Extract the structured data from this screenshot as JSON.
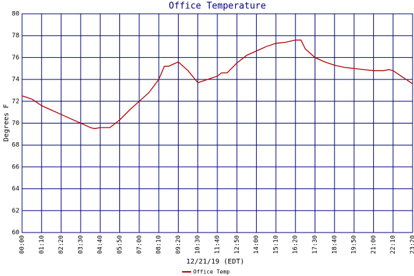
{
  "chart_data": {
    "type": "line",
    "title": "Office Temperature",
    "xlabel": "12/21/19 (EDT)",
    "ylabel": "Degrees F",
    "x": [
      0,
      35,
      70,
      105,
      140,
      175,
      210,
      245,
      260,
      280,
      315,
      350,
      385,
      420,
      455,
      490,
      510,
      525,
      560,
      595,
      630,
      665,
      700,
      715,
      735,
      770,
      805,
      840,
      875,
      910,
      945,
      980,
      1000,
      1015,
      1050,
      1085,
      1120,
      1155,
      1190,
      1225,
      1260,
      1295,
      1315,
      1330,
      1365,
      1400
    ],
    "series": [
      {
        "name": "Office Temp",
        "color": "#b00000",
        "values": [
          72.5,
          72.2,
          71.6,
          71.2,
          70.8,
          70.4,
          70.0,
          69.6,
          69.5,
          69.6,
          69.6,
          70.3,
          71.2,
          72.0,
          72.8,
          74.0,
          75.2,
          75.2,
          75.6,
          74.8,
          73.7,
          74.0,
          74.3,
          74.6,
          74.6,
          75.5,
          76.2,
          76.6,
          77.0,
          77.3,
          77.4,
          77.6,
          77.6,
          76.8,
          76.0,
          75.6,
          75.3,
          75.1,
          75.0,
          74.9,
          74.8,
          74.8,
          74.9,
          74.8,
          74.2,
          73.6
        ]
      }
    ],
    "xlim": [
      0,
      1400
    ],
    "xticks": [
      {
        "value": 0,
        "label": "00:00"
      },
      {
        "value": 70,
        "label": "01:10"
      },
      {
        "value": 140,
        "label": "02:20"
      },
      {
        "value": 210,
        "label": "03:30"
      },
      {
        "value": 280,
        "label": "04:40"
      },
      {
        "value": 350,
        "label": "05:50"
      },
      {
        "value": 420,
        "label": "07:00"
      },
      {
        "value": 490,
        "label": "08:10"
      },
      {
        "value": 560,
        "label": "09:20"
      },
      {
        "value": 630,
        "label": "10:30"
      },
      {
        "value": 700,
        "label": "11:40"
      },
      {
        "value": 770,
        "label": "12:50"
      },
      {
        "value": 840,
        "label": "14:00"
      },
      {
        "value": 910,
        "label": "15:10"
      },
      {
        "value": 980,
        "label": "16:20"
      },
      {
        "value": 1050,
        "label": "17:30"
      },
      {
        "value": 1120,
        "label": "18:40"
      },
      {
        "value": 1190,
        "label": "19:50"
      },
      {
        "value": 1260,
        "label": "21:00"
      },
      {
        "value": 1330,
        "label": "22:10"
      },
      {
        "value": 1400,
        "label": "23:20"
      }
    ],
    "ylim": [
      60,
      80
    ],
    "yticks": [
      60,
      62,
      64,
      66,
      68,
      70,
      72,
      74,
      76,
      78,
      80
    ],
    "grid": true
  }
}
